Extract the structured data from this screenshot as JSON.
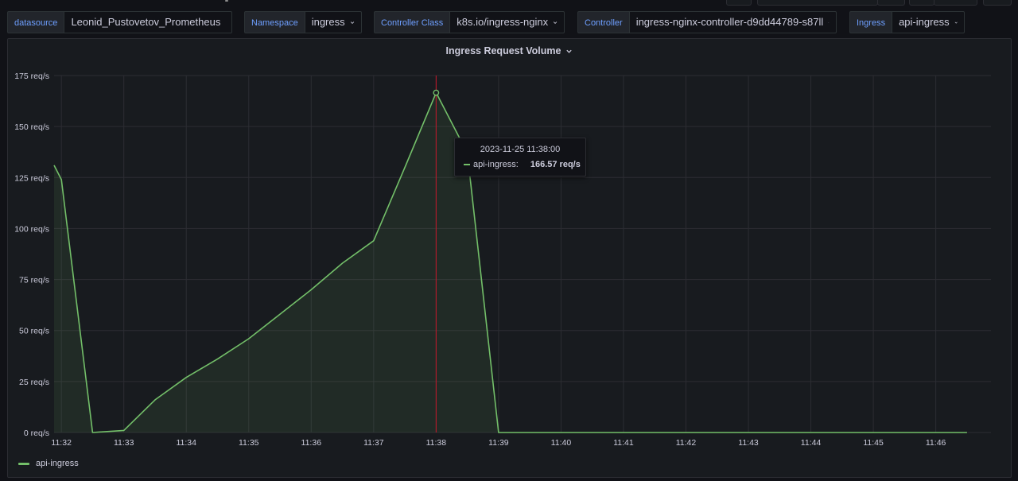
{
  "variables": [
    {
      "label": "datasource",
      "value": "Leonid_Pustovetov_Prometheus"
    },
    {
      "label": "Namespace",
      "value": "ingress"
    },
    {
      "label": "Controller Class",
      "value": "k8s.io/ingress-nginx"
    },
    {
      "label": "Controller",
      "value": "ingress-nginx-controller-d9dd44789-s87ll"
    },
    {
      "label": "Ingress",
      "value": "api-ingress"
    }
  ],
  "panel": {
    "title": "Ingress Request Volume"
  },
  "tooltip": {
    "time": "2023-11-25 11:38:00",
    "series": "api-ingress:",
    "value": "166.57 req/s"
  },
  "colors": {
    "series": "#73bf69",
    "cursor": "#c4162a",
    "grid": "#2c2d33",
    "label_accent": "#6e9fff"
  },
  "chart_data": {
    "type": "area",
    "title": "Ingress Request Volume",
    "unit": "req/s",
    "ylim": [
      0,
      175
    ],
    "yticks": [
      0,
      25,
      50,
      75,
      100,
      125,
      150,
      175
    ],
    "ytick_labels": [
      "0 req/s",
      "25 req/s",
      "50 req/s",
      "75 req/s",
      "100 req/s",
      "125 req/s",
      "150 req/s",
      "175 req/s"
    ],
    "xlim": [
      "11:31:53",
      "11:46:53"
    ],
    "xtick_labels": [
      "11:32",
      "11:33",
      "11:34",
      "11:35",
      "11:36",
      "11:37",
      "11:38",
      "11:39",
      "11:40",
      "11:41",
      "11:42",
      "11:43",
      "11:44",
      "11:45",
      "11:46"
    ],
    "grid": true,
    "legend": "bottom-left",
    "cursor_x": "11:38:00",
    "series": [
      {
        "name": "api-ingress",
        "x": [
          "11:31:53",
          "11:32:00",
          "11:32:30",
          "11:33:00",
          "11:33:30",
          "11:34:00",
          "11:34:30",
          "11:35:00",
          "11:35:30",
          "11:36:00",
          "11:36:30",
          "11:37:00",
          "11:37:30",
          "11:38:00",
          "11:38:30",
          "11:39:00",
          "11:39:30",
          "11:40:00",
          "11:40:30",
          "11:41:00",
          "11:41:30",
          "11:42:00",
          "11:42:30",
          "11:43:00",
          "11:43:30",
          "11:44:00",
          "11:44:30",
          "11:45:00",
          "11:45:30",
          "11:46:00",
          "11:46:30"
        ],
        "y": [
          131,
          124,
          0,
          1,
          16,
          27,
          36,
          46,
          58,
          70,
          83,
          94,
          130,
          166.57,
          137,
          0,
          0,
          0,
          0,
          0,
          0,
          0,
          0,
          0,
          0,
          0,
          0,
          0,
          0,
          0,
          0
        ]
      }
    ]
  }
}
